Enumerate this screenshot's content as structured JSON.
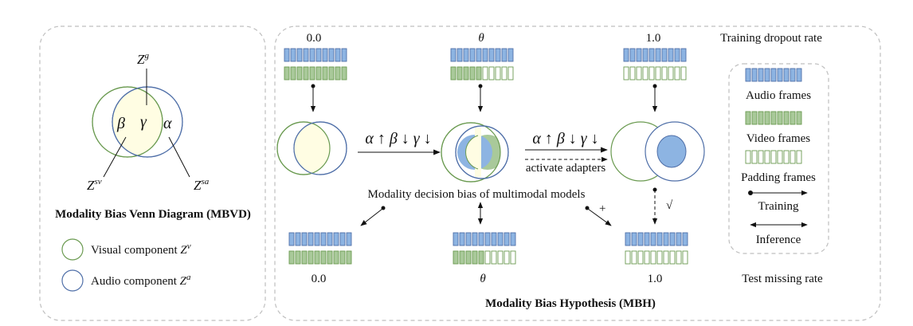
{
  "colors": {
    "audio_fill": "#8DB4E2",
    "audio_stroke": "#4F6FA8",
    "video_fill": "#A9C99A",
    "video_stroke": "#6A9A50",
    "overlap_fill": "#FFFDE3",
    "panel_border": "#BFBFBF"
  },
  "mbvd": {
    "top_label_base": "Z",
    "top_label_sup": "g",
    "sv_label_base": "Z",
    "sv_label_sup": "sv",
    "sa_label_base": "Z",
    "sa_label_sup": "sa",
    "beta": "β",
    "gamma": "γ",
    "alpha": "α",
    "title": "Modality Bias Venn Diagram (MBVD)",
    "legend": [
      {
        "text": "Visual component ",
        "base": "Z",
        "sup": "v"
      },
      {
        "text": "Audio component ",
        "base": "Z",
        "sup": "a"
      }
    ]
  },
  "mbh": {
    "train_rates": [
      "0.0",
      "θ",
      "1.0"
    ],
    "train_rate_label": "Training dropout rate",
    "test_rates": [
      "0.0",
      "θ",
      "1.0"
    ],
    "test_rate_label": "Test missing rate",
    "trend_label_1": "α ↑ β ↓ γ ↓",
    "trend_label_2": "α ↑ β ↓ γ ↓",
    "adapters_label": "activate adapters",
    "decision_label": "Modality decision bias of multimodal models",
    "cross_mark": "+",
    "check_mark": "√",
    "title": "Modality Bias Hypothesis (MBH)",
    "legend": {
      "audio": "Audio frames",
      "video": "Video frames",
      "padding": "Padding frames",
      "training": "Training",
      "inference": "Inference"
    }
  }
}
